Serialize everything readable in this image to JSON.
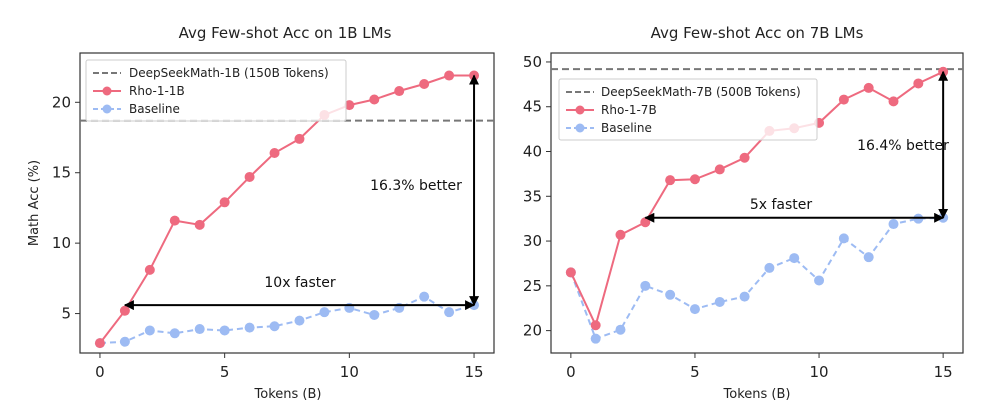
{
  "chart_data": [
    {
      "type": "line",
      "title": "Avg Few-shot Acc on 1B LMs",
      "xlabel": "Tokens (B)",
      "ylabel": "Math Acc (%)",
      "xlim": [
        -0.8,
        15.8
      ],
      "ylim": [
        2.2,
        23.5
      ],
      "xticks": [
        0,
        5,
        10,
        15
      ],
      "yticks": [
        5,
        10,
        15,
        20
      ],
      "grid": false,
      "legend_position": "top-left",
      "x": [
        0,
        1,
        2,
        3,
        4,
        5,
        6,
        7,
        8,
        9,
        10,
        11,
        12,
        13,
        14,
        15
      ],
      "series": [
        {
          "name": "Rho-1-1B",
          "style": "solid",
          "color": "#ee6a7f",
          "values": [
            2.9,
            5.2,
            8.1,
            11.6,
            11.3,
            12.9,
            14.7,
            16.4,
            17.4,
            19.1,
            19.8,
            20.2,
            20.8,
            21.3,
            21.9,
            21.9
          ]
        },
        {
          "name": "Baseline",
          "style": "dashed",
          "color": "#9dbbf3",
          "values": [
            2.9,
            3.0,
            3.8,
            3.6,
            3.9,
            3.8,
            4.0,
            4.1,
            4.5,
            5.1,
            5.4,
            4.9,
            5.4,
            6.2,
            5.1,
            5.6
          ]
        }
      ],
      "reference": {
        "name": "DeepSeekMath-1B (150B Tokens)",
        "value": 18.7,
        "color": "#777777"
      },
      "annotations": {
        "better_text": "16.3% better",
        "better_x": 15,
        "better_y": [
          5.6,
          21.9
        ],
        "faster_text": "10x faster",
        "faster_y": 5.6,
        "faster_x": [
          1,
          15
        ]
      }
    },
    {
      "type": "line",
      "title": "Avg Few-shot Acc on 7B LMs",
      "xlabel": "Tokens (B)",
      "ylabel": "",
      "xlim": [
        -0.8,
        15.8
      ],
      "ylim": [
        17.5,
        51.0
      ],
      "xticks": [
        0,
        5,
        10,
        15
      ],
      "yticks": [
        20,
        25,
        30,
        35,
        40,
        45,
        50
      ],
      "grid": false,
      "legend_position": "top-left",
      "x": [
        0,
        1,
        2,
        3,
        4,
        5,
        6,
        7,
        8,
        9,
        10,
        11,
        12,
        13,
        14,
        15
      ],
      "series": [
        {
          "name": "Rho-1-7B",
          "style": "solid",
          "color": "#ee6a7f",
          "values": [
            26.5,
            20.6,
            30.7,
            32.1,
            36.8,
            36.9,
            38.0,
            39.3,
            42.3,
            42.6,
            43.2,
            45.8,
            47.1,
            45.6,
            47.6,
            48.9
          ]
        },
        {
          "name": "Baseline",
          "style": "dashed",
          "color": "#9dbbf3",
          "values": [
            26.5,
            19.1,
            20.1,
            25.0,
            24.0,
            22.4,
            23.2,
            23.8,
            27.0,
            28.1,
            25.6,
            30.3,
            28.2,
            31.9,
            32.5,
            32.6
          ]
        }
      ],
      "reference": {
        "name": "DeepSeekMath-7B (500B Tokens)",
        "value": 49.2,
        "color": "#777777"
      },
      "annotations": {
        "better_text": "16.4% better",
        "better_x": 15,
        "better_y": [
          32.6,
          48.9
        ],
        "faster_text": "5x faster",
        "faster_y": 32.6,
        "faster_x": [
          3,
          15
        ]
      }
    }
  ]
}
